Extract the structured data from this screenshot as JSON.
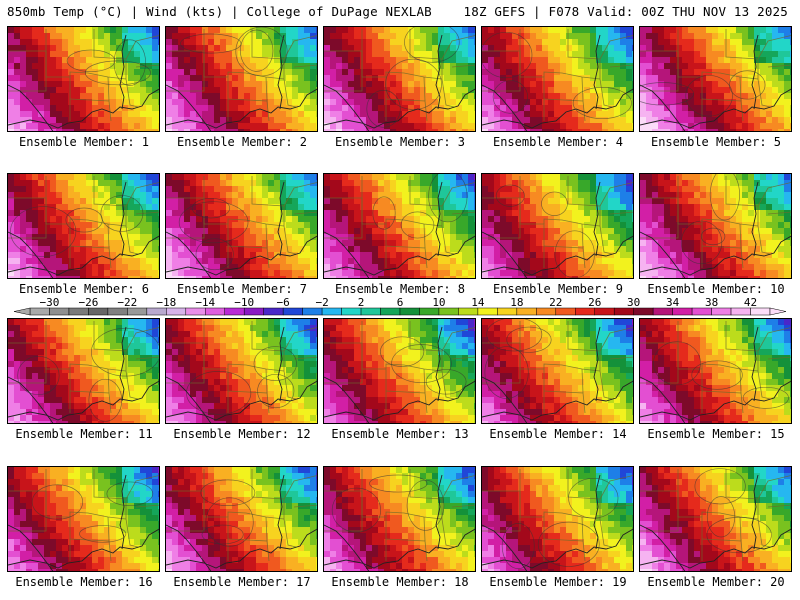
{
  "header": {
    "left": "850mb Temp (°C) | Wind (kts) | College of DuPage NEXLAB",
    "right": "18Z GEFS | F078 Valid: 00Z THU NOV 13 2025"
  },
  "members": [
    {
      "label": "Ensemble Member: 1",
      "member": 1,
      "warmth": 0.55
    },
    {
      "label": "Ensemble Member: 2",
      "member": 2,
      "warmth": 0.6
    },
    {
      "label": "Ensemble Member: 3",
      "member": 3,
      "warmth": 0.65
    },
    {
      "label": "Ensemble Member: 4",
      "member": 4,
      "warmth": 0.45
    },
    {
      "label": "Ensemble Member: 5",
      "member": 5,
      "warmth": 0.8
    },
    {
      "label": "Ensemble Member: 6",
      "member": 6,
      "warmth": 0.55
    },
    {
      "label": "Ensemble Member: 7",
      "member": 7,
      "warmth": 0.7
    },
    {
      "label": "Ensemble Member: 8",
      "member": 8,
      "warmth": 0.45
    },
    {
      "label": "Ensemble Member: 9",
      "member": 9,
      "warmth": 0.35
    },
    {
      "label": "Ensemble Member: 10",
      "member": 10,
      "warmth": 0.7
    },
    {
      "label": "Ensemble Member: 11",
      "member": 11,
      "warmth": 0.5
    },
    {
      "label": "Ensemble Member: 12",
      "member": 12,
      "warmth": 0.4
    },
    {
      "label": "Ensemble Member: 13",
      "member": 13,
      "warmth": 0.3
    },
    {
      "label": "Ensemble Member: 14",
      "member": 14,
      "warmth": 0.3
    },
    {
      "label": "Ensemble Member: 15",
      "member": 15,
      "warmth": 0.45
    },
    {
      "label": "Ensemble Member: 16",
      "member": 16,
      "warmth": 0.35
    },
    {
      "label": "Ensemble Member: 17",
      "member": 17,
      "warmth": 0.5
    },
    {
      "label": "Ensemble Member: 18",
      "member": 18,
      "warmth": 0.45
    },
    {
      "label": "Ensemble Member: 19",
      "member": 19,
      "warmth": 0.4
    },
    {
      "label": "Ensemble Member: 20",
      "member": 20,
      "warmth": 0.6
    }
  ],
  "colorbar": {
    "unit": "°C",
    "min": -32,
    "max": 44,
    "tick_labels": [
      "−30",
      "−26",
      "−22",
      "−18",
      "−14",
      "−10",
      "−6",
      "−2",
      "2",
      "6",
      "10",
      "14",
      "18",
      "22",
      "26",
      "30",
      "34",
      "38",
      "42"
    ],
    "tick_values": [
      -30,
      -26,
      -22,
      -18,
      -14,
      -10,
      -6,
      -2,
      2,
      6,
      10,
      14,
      18,
      22,
      26,
      30,
      34,
      38,
      42
    ],
    "bins": [
      {
        "from": -32,
        "to": -30,
        "color": "#a9a9a9"
      },
      {
        "from": -30,
        "to": -28,
        "color": "#8f8f8f"
      },
      {
        "from": -28,
        "to": -26,
        "color": "#7a7a7a"
      },
      {
        "from": -26,
        "to": -24,
        "color": "#666666"
      },
      {
        "from": -24,
        "to": -22,
        "color": "#808080"
      },
      {
        "from": -22,
        "to": -20,
        "color": "#999999"
      },
      {
        "from": -20,
        "to": -18,
        "color": "#b9a9cf"
      },
      {
        "from": -18,
        "to": -16,
        "color": "#d7b3ea"
      },
      {
        "from": -16,
        "to": -14,
        "color": "#e98fe9"
      },
      {
        "from": -14,
        "to": -12,
        "color": "#df5fe0"
      },
      {
        "from": -12,
        "to": -10,
        "color": "#b92ad6"
      },
      {
        "from": -10,
        "to": -8,
        "color": "#8a1bc4"
      },
      {
        "from": -8,
        "to": -6,
        "color": "#4a27c9"
      },
      {
        "from": -6,
        "to": -4,
        "color": "#2046d8"
      },
      {
        "from": -4,
        "to": -2,
        "color": "#1e7fe8"
      },
      {
        "from": -2,
        "to": 0,
        "color": "#26b7f0"
      },
      {
        "from": 0,
        "to": 2,
        "color": "#22d6c8"
      },
      {
        "from": 2,
        "to": 4,
        "color": "#1fc79a"
      },
      {
        "from": 4,
        "to": 6,
        "color": "#15a65a"
      },
      {
        "from": 6,
        "to": 8,
        "color": "#14913a"
      },
      {
        "from": 8,
        "to": 10,
        "color": "#38a82a"
      },
      {
        "from": 10,
        "to": 12,
        "color": "#79c21f"
      },
      {
        "from": 12,
        "to": 14,
        "color": "#bcdc1c"
      },
      {
        "from": 14,
        "to": 16,
        "color": "#f2f21e"
      },
      {
        "from": 16,
        "to": 18,
        "color": "#f7d31f"
      },
      {
        "from": 18,
        "to": 20,
        "color": "#f9b022"
      },
      {
        "from": 20,
        "to": 22,
        "color": "#f78a22"
      },
      {
        "from": 22,
        "to": 24,
        "color": "#f0591f"
      },
      {
        "from": 24,
        "to": 26,
        "color": "#e52a1c"
      },
      {
        "from": 26,
        "to": 28,
        "color": "#c8141a"
      },
      {
        "from": 28,
        "to": 30,
        "color": "#a3081b"
      },
      {
        "from": 30,
        "to": 32,
        "color": "#7d0a2a"
      },
      {
        "from": 32,
        "to": 34,
        "color": "#b5157a"
      },
      {
        "from": 34,
        "to": 36,
        "color": "#d21fa6"
      },
      {
        "from": 36,
        "to": 38,
        "color": "#e34fd2"
      },
      {
        "from": 38,
        "to": 40,
        "color": "#ef7fe6"
      },
      {
        "from": 40,
        "to": 42,
        "color": "#f6b3f1"
      },
      {
        "from": 42,
        "to": 44,
        "color": "#fbdcf8"
      }
    ]
  }
}
